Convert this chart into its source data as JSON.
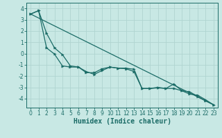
{
  "xlabel": "Humidex (Indice chaleur)",
  "xlim": [
    -0.5,
    23.5
  ],
  "ylim": [
    -4.8,
    4.5
  ],
  "bg_color": "#c8e8e4",
  "grid_color": "#b0d4d0",
  "line_color": "#1a6b66",
  "line1_x": [
    0,
    1,
    2,
    3,
    4,
    5,
    6,
    7,
    8,
    9,
    10,
    11,
    12,
    13,
    14,
    15,
    16,
    17,
    18,
    19,
    20,
    21,
    22,
    23
  ],
  "line1_y": [
    3.5,
    3.8,
    1.8,
    0.5,
    -0.1,
    -1.1,
    -1.2,
    -1.6,
    -1.85,
    -1.5,
    -1.2,
    -1.3,
    -1.3,
    -1.4,
    -3.1,
    -3.1,
    -3.05,
    -3.1,
    -2.7,
    -3.3,
    -3.6,
    -3.7,
    -4.1,
    -4.55
  ],
  "line2_x": [
    0,
    1,
    2,
    3,
    4,
    5,
    6,
    7,
    8,
    9,
    10,
    11,
    12,
    13,
    14,
    15,
    16,
    17,
    18,
    19,
    20,
    21,
    22,
    23
  ],
  "line2_y": [
    3.5,
    3.8,
    0.5,
    -0.05,
    -1.1,
    -1.2,
    -1.2,
    -1.7,
    -1.7,
    -1.35,
    -1.2,
    -1.3,
    -1.35,
    -1.6,
    -3.1,
    -3.1,
    -3.0,
    -3.1,
    -3.1,
    -3.3,
    -3.4,
    -3.8,
    -4.2,
    -4.55
  ],
  "line3_x": [
    0,
    23
  ],
  "line3_y": [
    3.5,
    -4.55
  ],
  "xticks": [
    0,
    1,
    2,
    3,
    4,
    5,
    6,
    7,
    8,
    9,
    10,
    11,
    12,
    13,
    14,
    15,
    16,
    17,
    18,
    19,
    20,
    21,
    22,
    23
  ],
  "yticks": [
    -4,
    -3,
    -2,
    -1,
    0,
    1,
    2,
    3,
    4
  ],
  "tick_fontsize": 5.5,
  "xlabel_fontsize": 7,
  "line_width": 0.9,
  "marker_size": 2.5
}
